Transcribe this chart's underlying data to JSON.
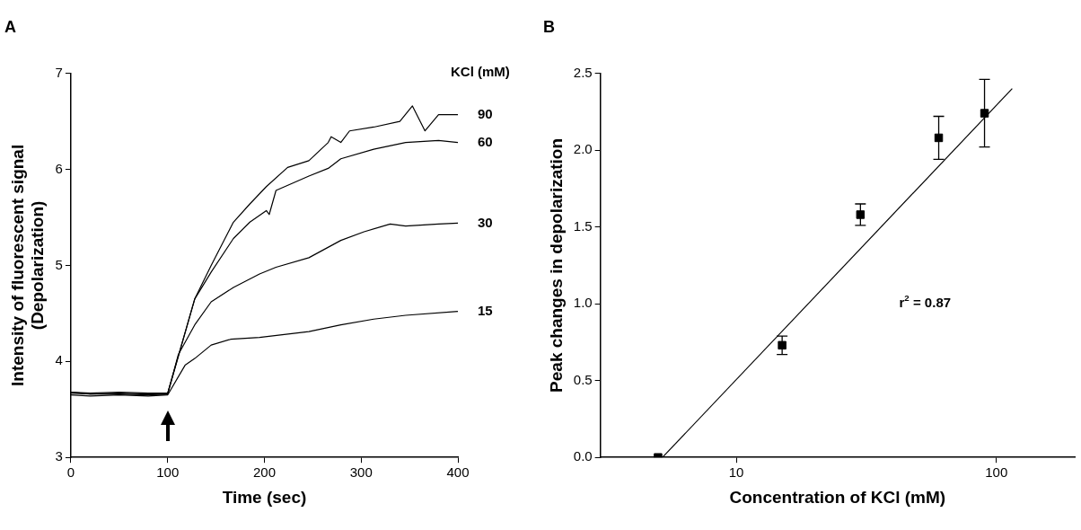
{
  "chart_data": [
    {
      "type": "line",
      "title": "A",
      "xlabel": "Time (sec)",
      "ylabel": "Intensity of fluorescent signal\n(Depolarization)",
      "legend_title": "KCl (mM)",
      "legend": false,
      "xlim": [
        0,
        400
      ],
      "ylim": [
        3,
        7
      ],
      "xticks": [
        0,
        100,
        200,
        300,
        400
      ],
      "yticks": [
        3,
        4,
        5,
        6,
        7
      ],
      "series": [
        {
          "name": "90",
          "color": "#000000",
          "marker": "none",
          "x": [
            0,
            20,
            50,
            80,
            100,
            128,
            145,
            168,
            185,
            202,
            224,
            246,
            266,
            269,
            279,
            288,
            313,
            340,
            353,
            366,
            380,
            400
          ],
          "values": [
            3.68,
            3.67,
            3.68,
            3.67,
            3.67,
            4.65,
            5.0,
            5.45,
            5.64,
            5.82,
            6.02,
            6.09,
            6.28,
            6.34,
            6.28,
            6.4,
            6.44,
            6.5,
            6.66,
            6.4,
            6.57,
            6.57
          ]
        },
        {
          "name": "60",
          "color": "#000000",
          "marker": "none",
          "x": [
            0,
            20,
            50,
            80,
            100,
            128,
            145,
            168,
            185,
            202,
            205,
            212,
            246,
            266,
            279,
            313,
            346,
            380,
            400
          ],
          "values": [
            3.68,
            3.66,
            3.67,
            3.66,
            3.66,
            4.65,
            4.93,
            5.28,
            5.45,
            5.57,
            5.53,
            5.78,
            5.93,
            6.01,
            6.11,
            6.21,
            6.28,
            6.3,
            6.28
          ]
        },
        {
          "name": "30",
          "color": "#000000",
          "marker": "none",
          "x": [
            0,
            20,
            50,
            80,
            100,
            111,
            128,
            145,
            168,
            195,
            212,
            246,
            279,
            303,
            330,
            346,
            380,
            400
          ],
          "values": [
            3.67,
            3.66,
            3.66,
            3.65,
            3.66,
            4.07,
            4.38,
            4.62,
            4.77,
            4.91,
            4.98,
            5.08,
            5.26,
            5.35,
            5.43,
            5.41,
            5.43,
            5.44
          ]
        },
        {
          "name": "15",
          "color": "#000000",
          "marker": "none",
          "x": [
            0,
            20,
            50,
            80,
            100,
            118,
            128,
            145,
            165,
            195,
            246,
            279,
            313,
            346,
            400
          ],
          "values": [
            3.65,
            3.64,
            3.65,
            3.64,
            3.65,
            3.96,
            4.03,
            4.17,
            4.23,
            4.25,
            4.31,
            4.38,
            4.44,
            4.48,
            4.52
          ]
        }
      ]
    },
    {
      "type": "scatter",
      "title": "B",
      "xlabel": "Concentration of KCl (mM)",
      "ylabel": "Peak changes in depolarization",
      "log": "x",
      "legend": false,
      "xlim": [
        3,
        200
      ],
      "ylim": [
        0,
        2.5
      ],
      "xticks": [
        10,
        100
      ],
      "yticks": [
        {
          "value": 0,
          "label": "0.0"
        },
        {
          "value": 0.5,
          "label": "0.5"
        },
        {
          "value": 1,
          "label": "1.0"
        },
        {
          "value": 1.5,
          "label": "1.5"
        },
        {
          "value": 2,
          "label": "2.0"
        },
        {
          "value": 2.5,
          "label": "2.5"
        }
      ],
      "annotations": [
        "r$^{2}$ = 0.87"
      ],
      "series": [
        {
          "type": "scatter",
          "color": "#000000",
          "marker": "square",
          "x": [
            5,
            15,
            30,
            60,
            90
          ],
          "values": [
            0,
            0.73,
            1.58,
            2.08,
            2.24
          ],
          "errors": [
            null,
            0.06,
            0.07,
            0.14,
            0.22
          ]
        },
        {
          "type": "line",
          "color": "#000000",
          "marker": "none",
          "x": [
            5.2,
            115
          ],
          "values": [
            0,
            2.4
          ]
        }
      ]
    }
  ]
}
